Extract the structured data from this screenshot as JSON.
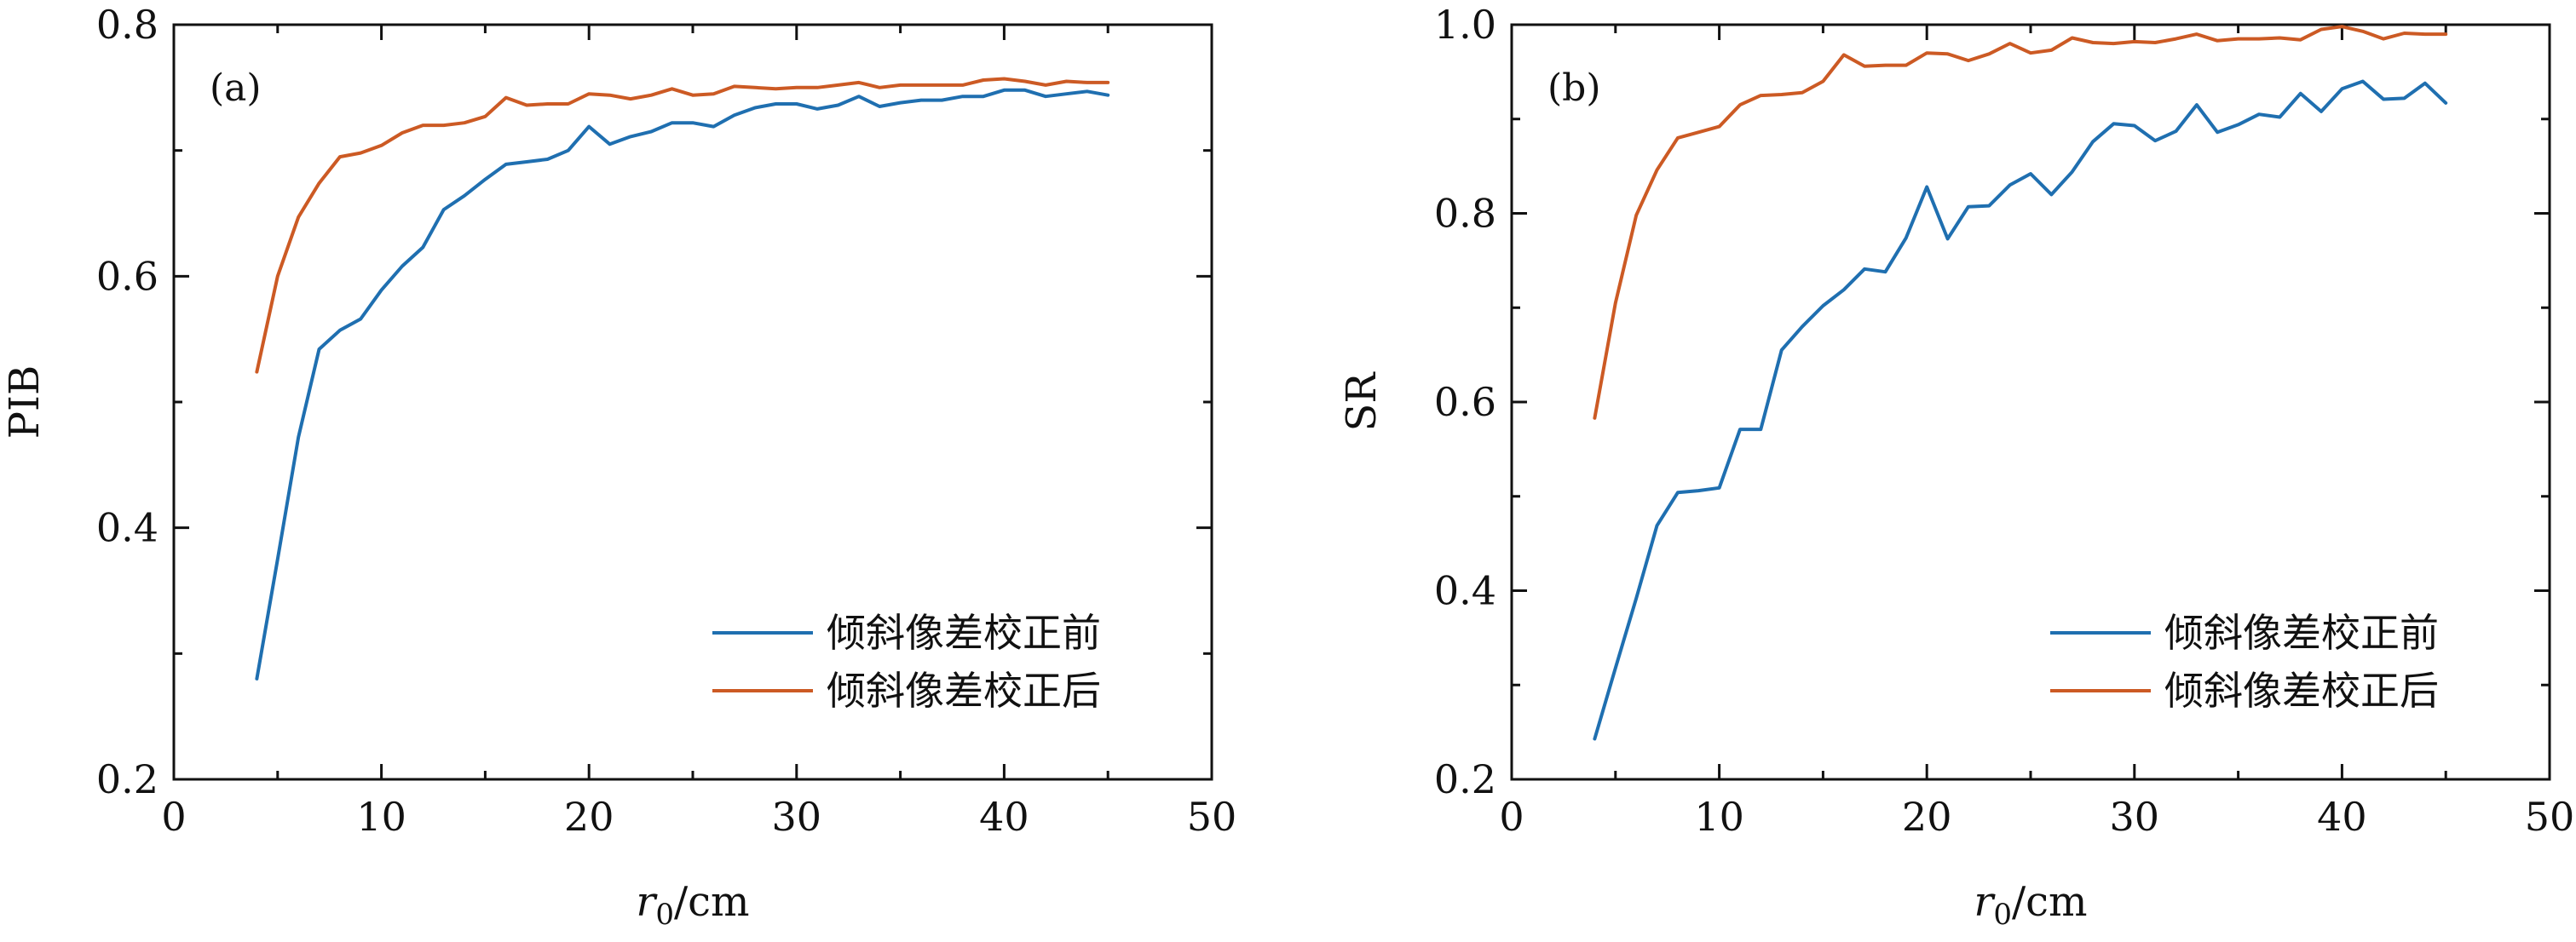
{
  "chart_data": [
    {
      "type": "line",
      "panel_label": "(a)",
      "xlabel": "r",
      "xlabel_sub": "0",
      "xlabel_unit": "/cm",
      "ylabel": "PIB",
      "xlim": [
        0,
        50
      ],
      "ylim": [
        0.2,
        0.8
      ],
      "xticks": [
        "0",
        "10",
        "20",
        "30",
        "40",
        "50"
      ],
      "yticks": [
        "0.2",
        "0.4",
        "0.6",
        "0.8"
      ],
      "legend_position": "lower-right",
      "x": [
        4,
        5,
        6,
        7,
        8,
        9,
        10,
        11,
        12,
        13,
        14,
        15,
        16,
        17,
        18,
        19,
        20,
        21,
        22,
        23,
        24,
        25,
        26,
        27,
        28,
        29,
        30,
        31,
        32,
        33,
        34,
        35,
        36,
        37,
        38,
        39,
        40,
        41,
        42,
        43,
        44,
        45
      ],
      "series": [
        {
          "name": "倾斜像差校正前",
          "color": "#1f6fb0",
          "values": [
            0.28,
            0.375,
            0.472,
            0.542,
            0.557,
            0.566,
            0.589,
            0.608,
            0.623,
            0.653,
            0.664,
            0.677,
            0.689,
            0.691,
            0.693,
            0.7,
            0.719,
            0.705,
            0.711,
            0.715,
            0.722,
            0.722,
            0.719,
            0.728,
            0.734,
            0.737,
            0.737,
            0.733,
            0.736,
            0.743,
            0.735,
            0.738,
            0.74,
            0.74,
            0.743,
            0.743,
            0.748,
            0.748,
            0.743,
            0.745,
            0.747,
            0.744
          ]
        },
        {
          "name": "倾斜像差校正后",
          "color": "#cc5a24",
          "values": [
            0.524,
            0.6,
            0.647,
            0.674,
            0.695,
            0.698,
            0.704,
            0.714,
            0.72,
            0.72,
            0.722,
            0.727,
            0.742,
            0.736,
            0.737,
            0.737,
            0.745,
            0.744,
            0.741,
            0.744,
            0.749,
            0.744,
            0.745,
            0.751,
            0.75,
            0.749,
            0.75,
            0.75,
            0.752,
            0.754,
            0.75,
            0.752,
            0.752,
            0.752,
            0.752,
            0.756,
            0.757,
            0.755,
            0.752,
            0.755,
            0.754,
            0.754
          ]
        }
      ]
    },
    {
      "type": "line",
      "panel_label": "(b)",
      "xlabel": "r",
      "xlabel_sub": "0",
      "xlabel_unit": "/cm",
      "ylabel": "SR",
      "xlim": [
        0,
        50
      ],
      "ylim": [
        0.2,
        1.0
      ],
      "xticks": [
        "0",
        "10",
        "20",
        "30",
        "40",
        "50"
      ],
      "yticks": [
        "0.2",
        "0.4",
        "0.6",
        "0.8",
        "1.0"
      ],
      "legend_position": "lower-right",
      "x": [
        4,
        5,
        6,
        7,
        8,
        9,
        10,
        11,
        12,
        13,
        14,
        15,
        16,
        17,
        18,
        19,
        20,
        21,
        22,
        23,
        24,
        25,
        26,
        27,
        28,
        29,
        30,
        31,
        32,
        33,
        34,
        35,
        36,
        37,
        38,
        39,
        40,
        41,
        42,
        43,
        44,
        45
      ],
      "series": [
        {
          "name": "倾斜像差校正前",
          "color": "#1f6fb0",
          "values": [
            0.243,
            0.318,
            0.392,
            0.469,
            0.504,
            0.506,
            0.509,
            0.571,
            0.571,
            0.655,
            0.68,
            0.702,
            0.719,
            0.741,
            0.738,
            0.774,
            0.828,
            0.773,
            0.807,
            0.808,
            0.83,
            0.842,
            0.82,
            0.844,
            0.876,
            0.895,
            0.893,
            0.877,
            0.887,
            0.915,
            0.886,
            0.894,
            0.905,
            0.902,
            0.927,
            0.908,
            0.932,
            0.94,
            0.921,
            0.922,
            0.938,
            0.917
          ]
        },
        {
          "name": "倾斜像差校正后",
          "color": "#cc5a24",
          "values": [
            0.583,
            0.705,
            0.798,
            0.846,
            0.88,
            0.886,
            0.892,
            0.915,
            0.925,
            0.926,
            0.928,
            0.94,
            0.968,
            0.956,
            0.957,
            0.957,
            0.97,
            0.969,
            0.962,
            0.969,
            0.98,
            0.97,
            0.973,
            0.986,
            0.981,
            0.98,
            0.982,
            0.981,
            0.985,
            0.99,
            0.983,
            0.985,
            0.985,
            0.986,
            0.984,
            0.995,
            0.998,
            0.993,
            0.985,
            0.991,
            0.99,
            0.99
          ]
        }
      ]
    }
  ]
}
